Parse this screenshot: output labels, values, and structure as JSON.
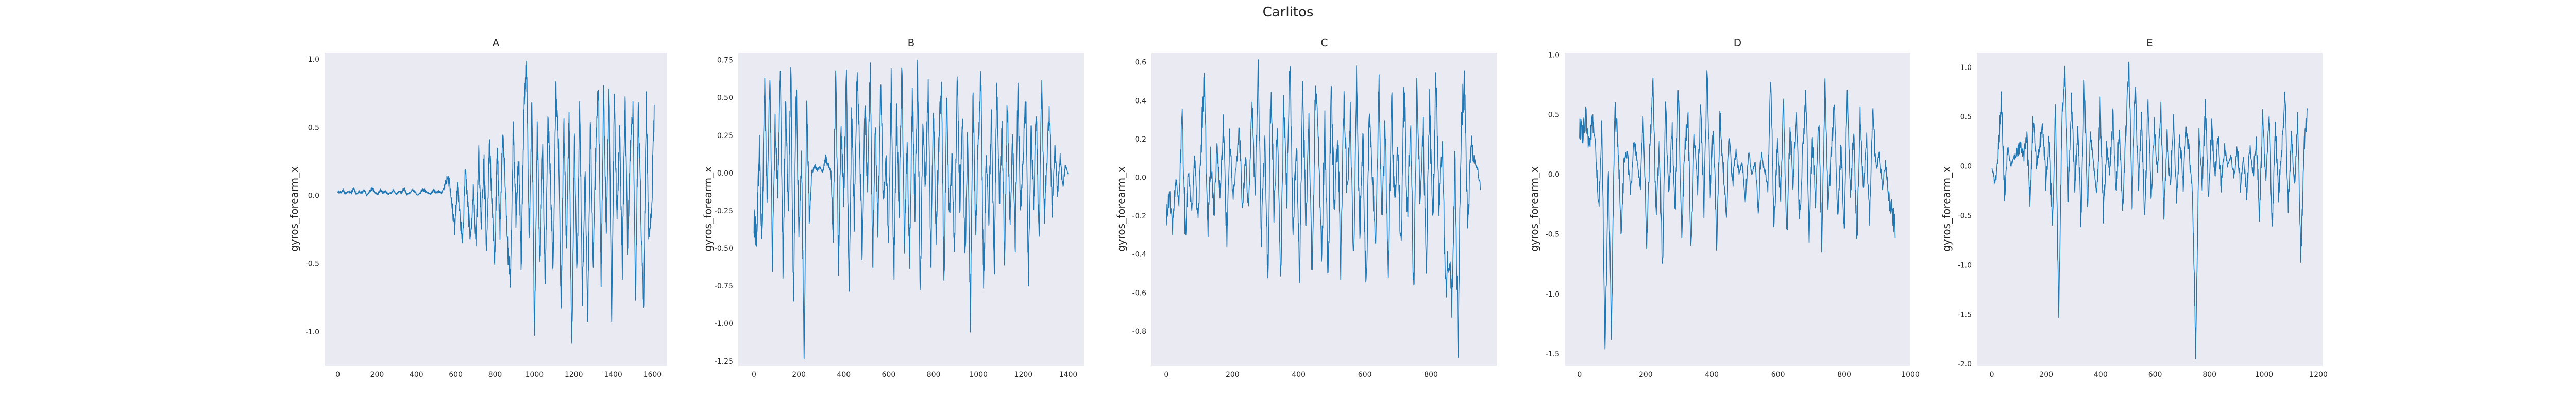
{
  "figure": {
    "suptitle": "Carlitos",
    "background": "#ffffff",
    "plot_background": "#eaeaf2",
    "line_color": "#1f77b4"
  },
  "chart_data": [
    {
      "type": "line",
      "title": "A",
      "ylabel": "gyros_forearm_x",
      "xlabel": "",
      "grid": false,
      "xlim": [
        -67,
        1675
      ],
      "ylim": [
        -1.25,
        1.05
      ],
      "xticks": [
        0,
        200,
        400,
        600,
        800,
        1000,
        1200,
        1400,
        1600
      ],
      "xtick_labels": [
        "0",
        "200",
        "400",
        "600",
        "800",
        "1000",
        "1200",
        "1400",
        "1600"
      ],
      "yticks": [
        -1.0,
        -0.5,
        0.0,
        0.5,
        1.0
      ],
      "ytick_labels": [
        "-1.0",
        "-0.5",
        "0.0",
        "0.5",
        "1.0"
      ],
      "n_points": 1610,
      "series": [
        {
          "values": [
            0.03,
            0.02,
            0.04,
            0.01,
            0.03,
            0.02,
            0.05,
            0.01,
            0.03,
            0.02,
            0.04,
            0.0,
            0.03,
            0.05,
            0.02,
            0.01,
            0.04,
            0.02,
            0.03,
            0.01,
            0.02,
            0.04,
            0.01,
            0.03,
            0.02,
            0.05,
            0.01,
            0.02,
            0.04,
            0.03,
            0.0,
            0.02,
            0.04,
            0.03,
            0.02,
            0.01,
            0.04,
            0.02,
            0.03,
            0.02,
            0.05,
            0.12,
            0.1,
            -0.08,
            -0.25,
            0.08,
            -0.15,
            -0.3,
            0.2,
            -0.1,
            -0.32,
            0.05,
            -0.35,
            0.3,
            -0.2,
            0.25,
            -0.45,
            0.4,
            -0.05,
            -0.5,
            0.35,
            -0.3,
            0.45,
            0.1,
            -0.4,
            -0.62,
            0.5,
            -0.2,
            0.3,
            -0.5,
            0.65,
            0.95,
            -0.3,
            0.7,
            -1.05,
            0.55,
            -0.55,
            0.4,
            -0.7,
            0.62,
            0.1,
            -0.6,
            0.8,
            0.35,
            -0.85,
            0.55,
            -0.4,
            0.62,
            -1.15,
            0.45,
            -0.6,
            0.7,
            -0.75,
            0.2,
            -0.9,
            0.6,
            -0.5,
            0.3,
            0.82,
            -0.65,
            0.75,
            -0.3,
            0.85,
            -1.0,
            0.7,
            -0.2,
            0.5,
            -0.55,
            0.72,
            -0.4,
            0.3,
            0.68,
            -0.75,
            0.65,
            -0.12,
            -0.9,
            0.7,
            -0.3,
            -0.1,
            0.62
          ]
        }
      ]
    },
    {
      "type": "line",
      "title": "B",
      "ylabel": "gyros_forearm_x",
      "xlabel": "",
      "grid": false,
      "xlim": [
        -70,
        1470
      ],
      "ylim": [
        -1.28,
        0.8
      ],
      "xticks": [
        0,
        200,
        400,
        600,
        800,
        1000,
        1200,
        1400
      ],
      "xtick_labels": [
        "0",
        "200",
        "400",
        "600",
        "800",
        "1000",
        "1200",
        "1400"
      ],
      "yticks": [
        -1.25,
        -1.0,
        -0.75,
        -0.5,
        -0.25,
        0.0,
        0.25,
        0.5,
        0.75
      ],
      "ytick_labels": [
        "-1.25",
        "-1.00",
        "-0.75",
        "-0.50",
        "-0.25",
        "0.00",
        "0.25",
        "0.50",
        "0.75"
      ],
      "n_points": 1400,
      "series": [
        {
          "values": [
            -0.3,
            -0.45,
            0.2,
            -0.5,
            0.6,
            -0.2,
            0.7,
            -0.6,
            0.3,
            -0.1,
            0.74,
            -0.65,
            0.5,
            -0.3,
            0.7,
            -0.9,
            0.62,
            -0.4,
            0.1,
            -1.2,
            0.5,
            -0.3,
            0.0,
            0.05,
            0.02,
            0.04,
            0.0,
            0.1,
            0.06,
            0.02,
            -0.4,
            0.72,
            -0.6,
            0.3,
            -0.2,
            0.68,
            -0.8,
            0.4,
            -0.35,
            0.7,
            0.2,
            -0.55,
            0.5,
            -0.1,
            0.72,
            -0.6,
            0.3,
            -0.4,
            0.65,
            -0.2,
            0.1,
            -0.45,
            0.62,
            -0.7,
            0.4,
            -0.3,
            0.74,
            -0.5,
            0.2,
            -0.6,
            0.55,
            -0.25,
            0.7,
            -0.8,
            0.3,
            -0.1,
            0.6,
            -0.65,
            0.45,
            -0.4,
            0.2,
            0.62,
            -0.75,
            0.5,
            -0.3,
            0.1,
            -0.55,
            0.68,
            -0.2,
            0.4,
            -0.6,
            0.3,
            -1.0,
            0.55,
            -0.4,
            0.2,
            0.65,
            -0.8,
            0.1,
            -0.3,
            0.45,
            -0.7,
            0.6,
            -0.2,
            0.3,
            -0.6,
            0.5,
            -0.35,
            0.2,
            -0.45,
            0.62,
            -0.3,
            0.1,
            0.5,
            -0.7,
            0.3,
            -0.2,
            0.45,
            -0.5,
            0.55,
            -0.3,
            0.1,
            0.4,
            -0.25,
            0.2,
            -0.15,
            0.1,
            -0.1,
            0.05,
            0.0
          ]
        }
      ]
    },
    {
      "type": "line",
      "title": "C",
      "ylabel": "gyros_forearm_x",
      "xlabel": "",
      "grid": false,
      "xlim": [
        -45,
        1000
      ],
      "ylim": [
        -0.98,
        0.65
      ],
      "xticks": [
        0,
        200,
        400,
        600,
        800
      ],
      "xtick_labels": [
        "0",
        "200",
        "400",
        "600",
        "800"
      ],
      "yticks": [
        -0.8,
        -0.6,
        -0.4,
        -0.2,
        0.0,
        0.2,
        0.4,
        0.6
      ],
      "ytick_labels": [
        "-0.8",
        "-0.6",
        "-0.4",
        "-0.2",
        "0.0",
        "0.2",
        "0.4",
        "0.6"
      ],
      "n_points": 950,
      "series": [
        {
          "values": [
            -0.2,
            -0.1,
            -0.25,
            0.0,
            -0.15,
            0.38,
            -0.3,
            0.05,
            -0.2,
            0.1,
            -0.25,
            0.2,
            0.56,
            -0.3,
            0.1,
            -0.2,
            0.15,
            -0.1,
            0.3,
            -0.35,
            0.2,
            -0.1,
            0.05,
            0.25,
            -0.15,
            0.1,
            -0.2,
            0.4,
            -0.1,
            0.55,
            -0.3,
            0.2,
            -0.5,
            0.5,
            -0.2,
            0.3,
            -0.6,
            0.4,
            -0.1,
            0.6,
            -0.3,
            0.2,
            -0.5,
            0.45,
            -0.25,
            0.3,
            -0.55,
            0.5,
            0.1,
            -0.4,
            0.3,
            -0.6,
            0.5,
            -0.2,
            0.25,
            -0.45,
            0.4,
            -0.1,
            0.3,
            -0.5,
            0.55,
            -0.3,
            0.2,
            -0.6,
            0.35,
            0.0,
            -0.4,
            0.5,
            -0.25,
            0.3,
            -0.55,
            0.45,
            -0.15,
            0.2,
            -0.4,
            0.5,
            -0.2,
            0.3,
            -0.6,
            0.45,
            -0.1,
            0.25,
            -0.45,
            0.4,
            -0.3,
            0.55,
            -0.2,
            0.2,
            -0.62,
            -0.4,
            -0.66,
            0.1,
            -0.88,
            0.3,
            0.5,
            -0.3,
            0.2,
            0.1,
            0.05,
            -0.05
          ]
        }
      ]
    },
    {
      "type": "line",
      "title": "D",
      "ylabel": "gyros_forearm_x",
      "xlabel": "",
      "grid": false,
      "xlim": [
        -45,
        1000
      ],
      "ylim": [
        -1.6,
        1.02
      ],
      "xticks": [
        0,
        200,
        400,
        600,
        800,
        1000
      ],
      "xtick_labels": [
        "0",
        "200",
        "400",
        "600",
        "800",
        "1000"
      ],
      "yticks": [
        -1.5,
        -1.0,
        -0.5,
        0.0,
        0.5,
        1.0
      ],
      "ytick_labels": [
        "-1.5",
        "-1.0",
        "-0.5",
        "0.0",
        "0.5",
        "1.0"
      ],
      "n_points": 955,
      "series": [
        {
          "values": [
            0.4,
            0.3,
            0.5,
            0.25,
            0.45,
            0.2,
            -0.3,
            0.4,
            -1.5,
            0.1,
            -1.4,
            0.55,
            0.3,
            -0.5,
            0.1,
            0.2,
            -0.2,
            0.3,
            0.1,
            -0.1,
            0.5,
            -0.6,
            0.2,
            0.8,
            -0.4,
            0.3,
            -0.8,
            0.6,
            -0.2,
            0.4,
            -0.3,
            0.7,
            -0.5,
            0.2,
            0.5,
            -0.7,
            0.3,
            -0.1,
            0.6,
            -0.3,
            0.88,
            -0.2,
            0.4,
            -0.6,
            0.5,
            0.1,
            -0.35,
            0.3,
            -0.1,
            0.2,
            0.0,
            0.1,
            -0.2,
            0.2,
            0.0,
            0.1,
            -0.3,
            0.2,
            0.05,
            -0.1,
            0.8,
            -0.5,
            0.3,
            -0.2,
            0.6,
            -0.6,
            0.4,
            -0.1,
            0.55,
            -0.4,
            0.2,
            0.7,
            -0.5,
            0.3,
            -0.2,
            0.5,
            -0.6,
            0.82,
            -0.3,
            0.2,
            0.6,
            -0.4,
            0.3,
            -0.5,
            0.75,
            -0.2,
            0.4,
            -0.6,
            0.5,
            -0.1,
            0.3,
            -0.4,
            0.6,
            0.0,
            0.2,
            -0.1,
            0.1,
            -0.2,
            -0.3,
            -0.45
          ]
        }
      ]
    },
    {
      "type": "line",
      "title": "E",
      "ylabel": "gyros_forearm_x",
      "xlabel": "",
      "grid": false,
      "xlim": [
        -55,
        1215
      ],
      "ylim": [
        -2.02,
        1.15
      ],
      "xticks": [
        0,
        200,
        400,
        600,
        800,
        1000,
        1200
      ],
      "xtick_labels": [
        "0",
        "200",
        "400",
        "600",
        "800",
        "1000",
        "1200"
      ],
      "yticks": [
        -2.0,
        -1.5,
        -1.0,
        -0.5,
        0.0,
        0.5,
        1.0
      ],
      "ytick_labels": [
        "-2.0",
        "-1.5",
        "-1.0",
        "-0.5",
        "0.0",
        "0.5",
        "1.0"
      ],
      "n_points": 1160,
      "series": [
        {
          "values": [
            0.0,
            -0.2,
            0.1,
            0.7,
            -0.3,
            0.2,
            0.0,
            0.1,
            0.15,
            0.2,
            0.1,
            0.3,
            -0.4,
            0.5,
            0.0,
            0.2,
            0.4,
            -0.2,
            0.3,
            -0.6,
            0.6,
            -1.55,
            0.5,
            1.0,
            -0.3,
            0.7,
            -0.2,
            0.4,
            -0.6,
            0.9,
            -0.4,
            0.3,
            0.0,
            -0.3,
            0.6,
            -0.5,
            0.2,
            -0.1,
            0.5,
            -0.3,
            0.4,
            -0.5,
            0.3,
            1.05,
            -0.4,
            0.8,
            -0.2,
            0.5,
            -0.6,
            0.7,
            -0.3,
            0.4,
            -0.1,
            0.6,
            -0.5,
            0.3,
            -0.2,
            0.5,
            -0.4,
            0.3,
            -0.2,
            0.4,
            0.1,
            -0.3,
            -1.9,
            0.3,
            -0.2,
            0.6,
            -0.3,
            0.4,
            -0.1,
            0.3,
            -0.2,
            0.2,
            0.0,
            0.1,
            -0.1,
            0.2,
            -0.2,
            0.1,
            -0.3,
            0.2,
            -0.1,
            0.3,
            -0.5,
            0.5,
            -0.2,
            0.6,
            -0.6,
            0.4,
            -0.3,
            0.2,
            0.7,
            -0.4,
            0.3,
            -0.2,
            0.5,
            -0.95,
            0.2,
            0.55
          ]
        }
      ]
    }
  ]
}
